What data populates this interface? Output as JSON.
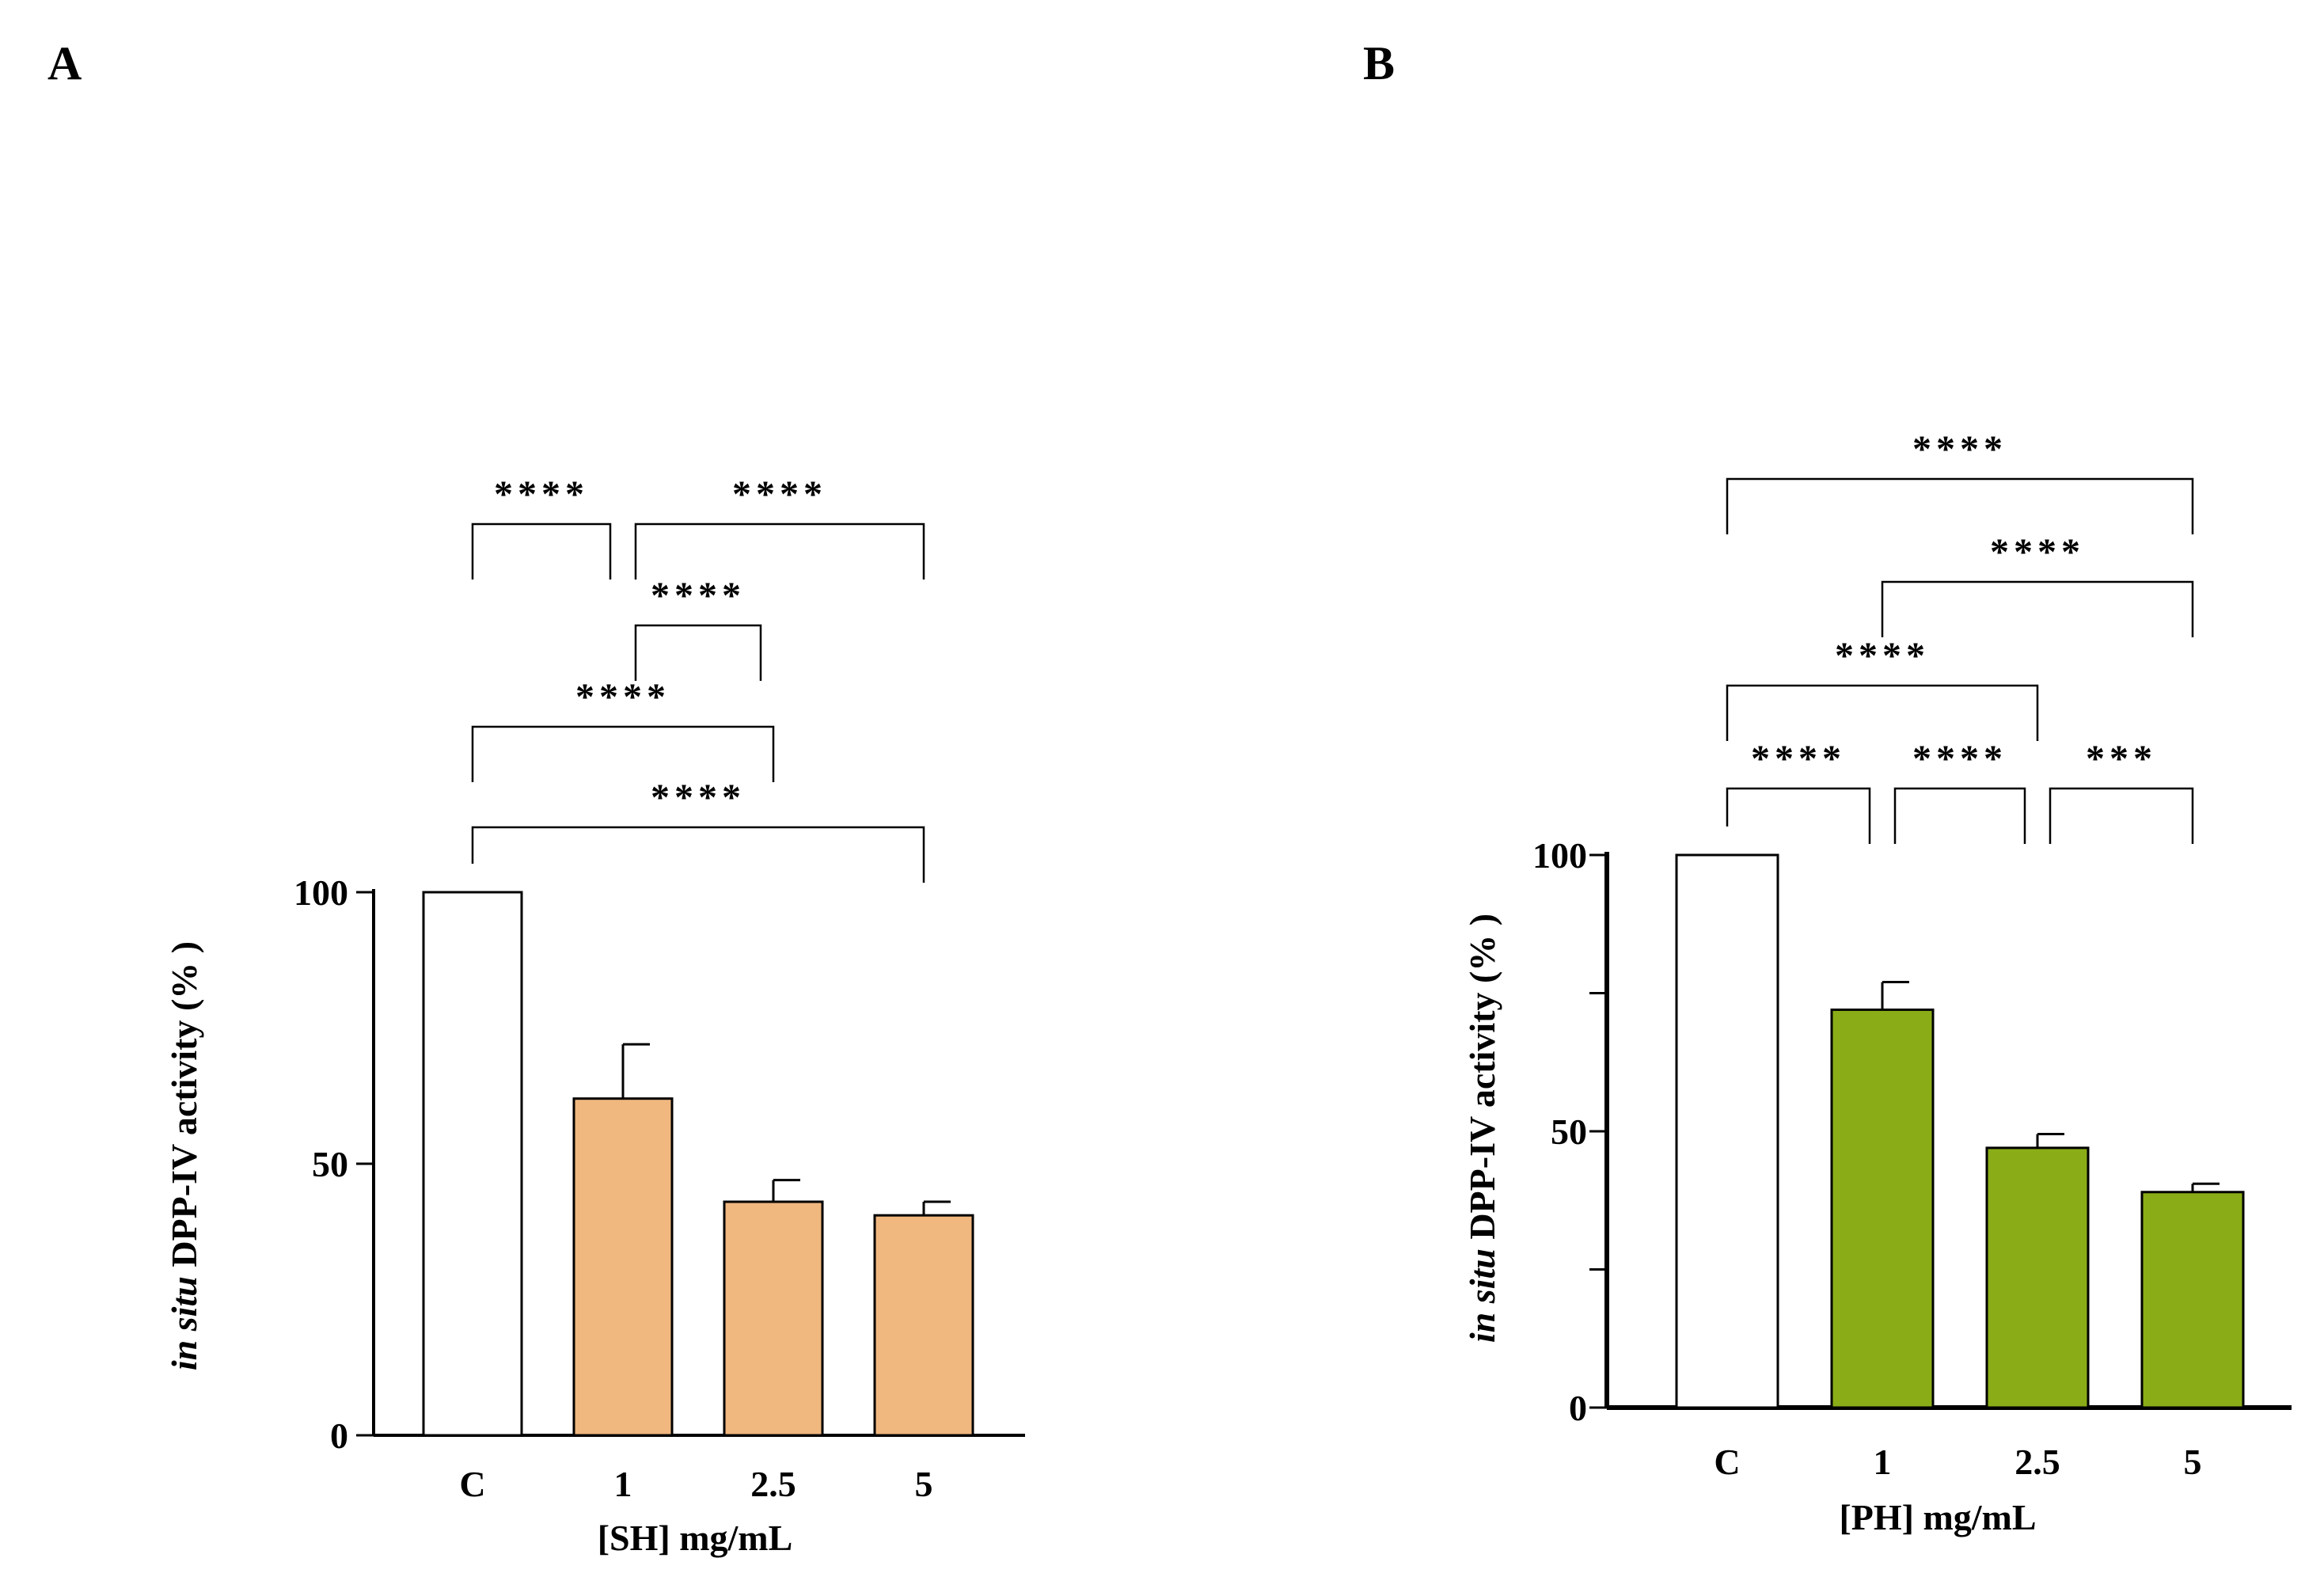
{
  "chart_data": [
    {
      "panel_label": "A",
      "type": "bar",
      "categories": [
        "C",
        "1",
        "2.5",
        "5"
      ],
      "values": [
        100,
        62,
        43,
        40.5
      ],
      "errors": [
        0,
        10,
        4,
        2.5
      ],
      "bar_colors": [
        "#ffffff",
        "#f0b77f",
        "#f0b77f",
        "#f0b77f"
      ],
      "ylabel_italic": "in situ",
      "ylabel_rest": " DPP-IV activity (% )",
      "xlabel": "[SH] mg/mL",
      "ylim": [
        0,
        100
      ],
      "yticks": [
        0,
        50,
        100
      ],
      "minor_yticks": [],
      "grid": false,
      "comparisons": [
        {
          "from": 0,
          "to": 3,
          "label": "****"
        },
        {
          "from": 0,
          "to": 2,
          "label": "****"
        },
        {
          "from": 1,
          "to": 2,
          "label": "****"
        },
        {
          "from": 0,
          "to": 1,
          "label": "****"
        },
        {
          "from": 1,
          "to": 3,
          "label": "****"
        }
      ]
    },
    {
      "panel_label": "B",
      "type": "bar",
      "categories": [
        "C",
        "1",
        "2.5",
        "5"
      ],
      "values": [
        100,
        72,
        47,
        39
      ],
      "errors": [
        0,
        5,
        2.5,
        1.5
      ],
      "bar_colors": [
        "#ffffff",
        "#8aad17",
        "#8aad17",
        "#8aad17"
      ],
      "ylabel_italic": "in situ",
      "ylabel_rest": " DPP-IV activity (% )",
      "xlabel": "[PH] mg/mL",
      "ylim": [
        0,
        100
      ],
      "yticks": [
        0,
        50,
        100
      ],
      "minor_yticks": [
        25,
        75
      ],
      "grid": false,
      "comparisons": [
        {
          "from": 0,
          "to": 3,
          "label": "****"
        },
        {
          "from": 1,
          "to": 3,
          "label": "****"
        },
        {
          "from": 0,
          "to": 2,
          "label": "****"
        },
        {
          "from": 0,
          "to": 1,
          "label": "****"
        },
        {
          "from": 1,
          "to": 2,
          "label": "****"
        },
        {
          "from": 2,
          "to": 3,
          "label": "***"
        }
      ]
    }
  ]
}
